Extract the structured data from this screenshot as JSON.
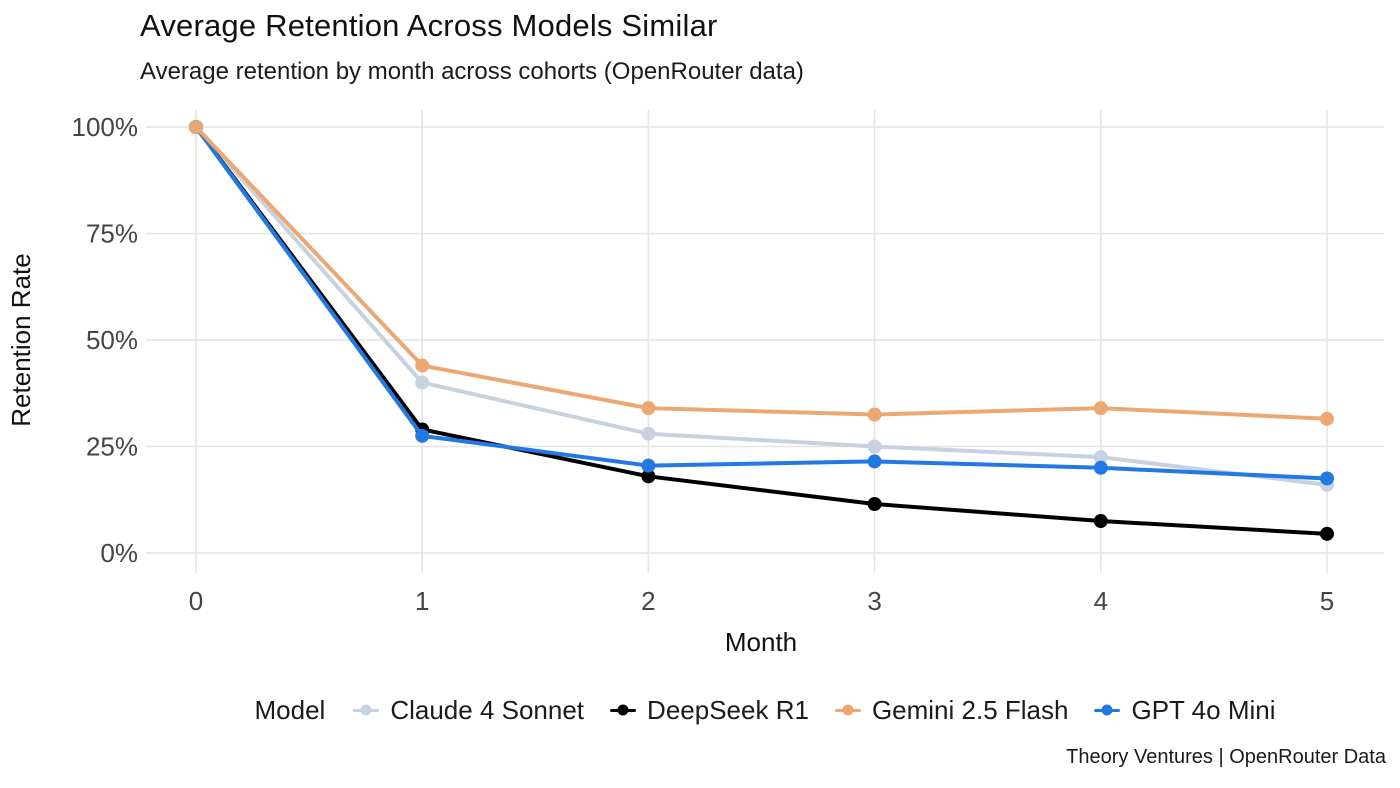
{
  "title": "Average Retention Across Models Similar",
  "subtitle": "Average retention by month across cohorts (OpenRouter data)",
  "footer": "Theory Ventures | OpenRouter Data",
  "legend": {
    "label": "Model",
    "position": "bottom"
  },
  "colors": {
    "grid": "#e4e4e4",
    "axis_tick_label": "#454545",
    "axis_title": "#111111",
    "background": "#ffffff"
  },
  "chart_data": {
    "type": "line",
    "title": "Average Retention Across Models Similar",
    "subtitle": "Average retention by month across cohorts (OpenRouter data)",
    "xlabel": "Month",
    "ylabel": "Retention Rate",
    "x": [
      0,
      1,
      2,
      3,
      4,
      5
    ],
    "xtick_labels": [
      "0",
      "1",
      "2",
      "3",
      "4",
      "5"
    ],
    "ylim": [
      0,
      100
    ],
    "yticks": [
      0,
      25,
      50,
      75,
      100
    ],
    "ytick_labels": [
      "0%",
      "25%",
      "50%",
      "75%",
      "100%"
    ],
    "grid": true,
    "legend_position": "bottom",
    "series": [
      {
        "name": "Claude 4 Sonnet",
        "color": "#c8d1e0",
        "values": [
          100,
          40,
          28,
          25,
          22.5,
          16
        ]
      },
      {
        "name": "DeepSeek R1",
        "color": "#000000",
        "values": [
          100,
          29,
          18,
          11.5,
          7.5,
          4.5
        ]
      },
      {
        "name": "Gemini 2.5 Flash",
        "color": "#eba873",
        "values": [
          100,
          44,
          34,
          32.5,
          34,
          31.5
        ]
      },
      {
        "name": "GPT 4o Mini",
        "color": "#2379e2",
        "values": [
          100,
          27.5,
          20.5,
          21.5,
          20,
          17.5
        ]
      }
    ],
    "draw_order": [
      0,
      1,
      3,
      2
    ]
  }
}
